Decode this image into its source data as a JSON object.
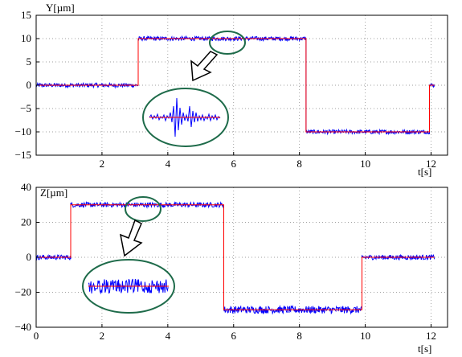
{
  "chart_data": [
    {
      "type": "line",
      "ylabel": "Y[µm]",
      "xlabel": "t[s]",
      "xlim": [
        0,
        12.5
      ],
      "ylim": [
        -15,
        15
      ],
      "xticks": [
        2,
        4,
        6,
        8,
        10,
        12
      ],
      "yticks": [
        -15,
        -10,
        -5,
        0,
        5,
        10,
        15
      ],
      "x_tick_labels": [
        "2",
        "4",
        "6",
        "8",
        "10",
        "12"
      ],
      "y_tick_labels": [
        "−15",
        "−10",
        "−5",
        "0",
        "5",
        "10",
        "15"
      ],
      "grid": true,
      "series": [
        {
          "color": "#0000ff",
          "style": "noisy measured signal",
          "x": [
            0,
            3.1,
            3.1,
            8.2,
            8.2,
            11.95,
            11.95,
            12.1
          ],
          "y": [
            0,
            0,
            10,
            10,
            -10,
            -10,
            0,
            0
          ]
        },
        {
          "color": "#ff0000",
          "style": "reference step signal",
          "x": [
            0,
            3.1,
            3.1,
            8.2,
            8.2,
            11.95,
            11.95,
            12.1
          ],
          "y": [
            0,
            0,
            10,
            10,
            -10,
            -10,
            0,
            0
          ]
        }
      ],
      "annotation": "zoomed inset of the disturbance near t≈5.7 s"
    },
    {
      "type": "line",
      "ylabel": "Z[µm]",
      "xlabel": "t[s]",
      "xlim": [
        0,
        12.5
      ],
      "ylim": [
        -40,
        40
      ],
      "xticks": [
        0,
        2,
        4,
        6,
        8,
        10,
        12
      ],
      "yticks": [
        -40,
        -20,
        0,
        20,
        40
      ],
      "x_tick_labels": [
        "0",
        "2",
        "4",
        "6",
        "8",
        "10",
        "12"
      ],
      "y_tick_labels": [
        "−40",
        "−20",
        "0",
        "20",
        "40"
      ],
      "grid": true,
      "series": [
        {
          "color": "#0000ff",
          "style": "noisy measured signal",
          "x": [
            0,
            1.05,
            1.05,
            5.7,
            5.7,
            9.9,
            9.9,
            12.1
          ],
          "y": [
            0,
            0,
            30,
            30,
            -30,
            -30,
            0,
            0
          ]
        },
        {
          "color": "#ff0000",
          "style": "reference step signal",
          "x": [
            0,
            1.05,
            1.05,
            5.7,
            5.7,
            9.9,
            9.9,
            12.1
          ],
          "y": [
            0,
            0,
            30,
            30,
            -30,
            -30,
            0,
            0
          ]
        }
      ],
      "annotation": "zoomed inset of the plateau noise near t≈3.2 s"
    }
  ]
}
